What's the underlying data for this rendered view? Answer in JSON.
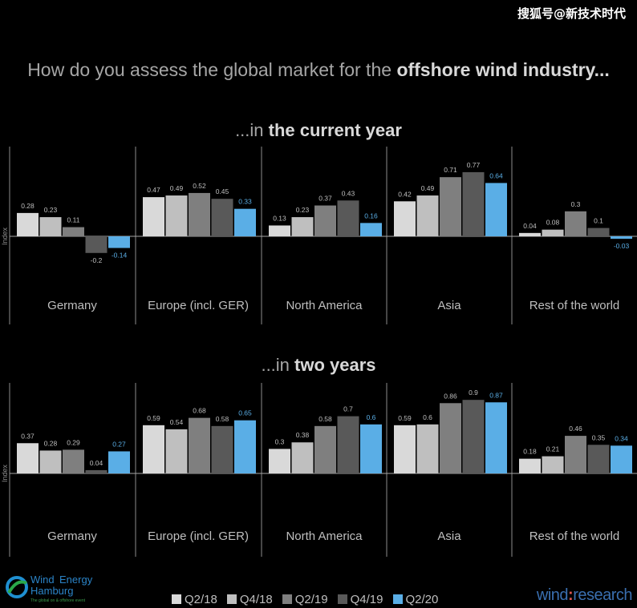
{
  "watermark": "搜狐号@新技术时代",
  "title": {
    "prefix": "How do you assess the global market for the ",
    "bold": "offshore wind industry..."
  },
  "colors": {
    "Q2/18": "#d9d9d9",
    "Q4/18": "#bfbfbf",
    "Q2/19": "#7f7f7f",
    "Q4/19": "#595959",
    "Q2/20": "#5aaee6"
  },
  "chart_data": [
    {
      "type": "bar",
      "title_prefix": "...in ",
      "title_bold": "the current year",
      "ylabel": "Index",
      "ylim": [
        -0.5,
        1.0
      ],
      "categories": [
        "Germany",
        "Europe (incl. GER)",
        "North America",
        "Asia",
        "Rest of the world"
      ],
      "series": [
        {
          "name": "Q2/18",
          "values": [
            0.28,
            0.47,
            0.13,
            0.42,
            0.04
          ]
        },
        {
          "name": "Q4/18",
          "values": [
            0.23,
            0.49,
            0.23,
            0.49,
            0.08
          ]
        },
        {
          "name": "Q2/19",
          "values": [
            0.11,
            0.52,
            0.37,
            0.71,
            0.3
          ]
        },
        {
          "name": "Q4/19",
          "values": [
            -0.2,
            0.45,
            0.43,
            0.77,
            0.1
          ]
        },
        {
          "name": "Q2/20",
          "values": [
            -0.14,
            0.33,
            0.16,
            0.64,
            -0.03
          ]
        }
      ]
    },
    {
      "type": "bar",
      "title_prefix": "...in ",
      "title_bold": "two years",
      "ylabel": "Index",
      "ylim": [
        -0.5,
        1.0
      ],
      "categories": [
        "Germany",
        "Europe (incl. GER)",
        "North America",
        "Asia",
        "Rest of the world"
      ],
      "series": [
        {
          "name": "Q2/18",
          "values": [
            0.37,
            0.59,
            0.3,
            0.59,
            0.18
          ]
        },
        {
          "name": "Q4/18",
          "values": [
            0.28,
            0.54,
            0.38,
            0.6,
            0.21
          ]
        },
        {
          "name": "Q2/19",
          "values": [
            0.29,
            0.68,
            0.58,
            0.86,
            0.46
          ]
        },
        {
          "name": "Q4/19",
          "values": [
            0.04,
            0.58,
            0.7,
            0.9,
            0.35
          ]
        },
        {
          "name": "Q2/20",
          "values": [
            0.27,
            0.65,
            0.6,
            0.87,
            0.34
          ]
        }
      ]
    }
  ],
  "legend": [
    "Q2/18",
    "Q4/18",
    "Q2/19",
    "Q4/19",
    "Q2/20"
  ],
  "footer": {
    "logo_line1": "Wind",
    "logo_line1b": "Energy",
    "logo_line2": "Hamburg",
    "logo_tagline": "The global on & offshore event",
    "brand_left": "wind",
    "brand_sep": ":",
    "brand_right": "research"
  }
}
